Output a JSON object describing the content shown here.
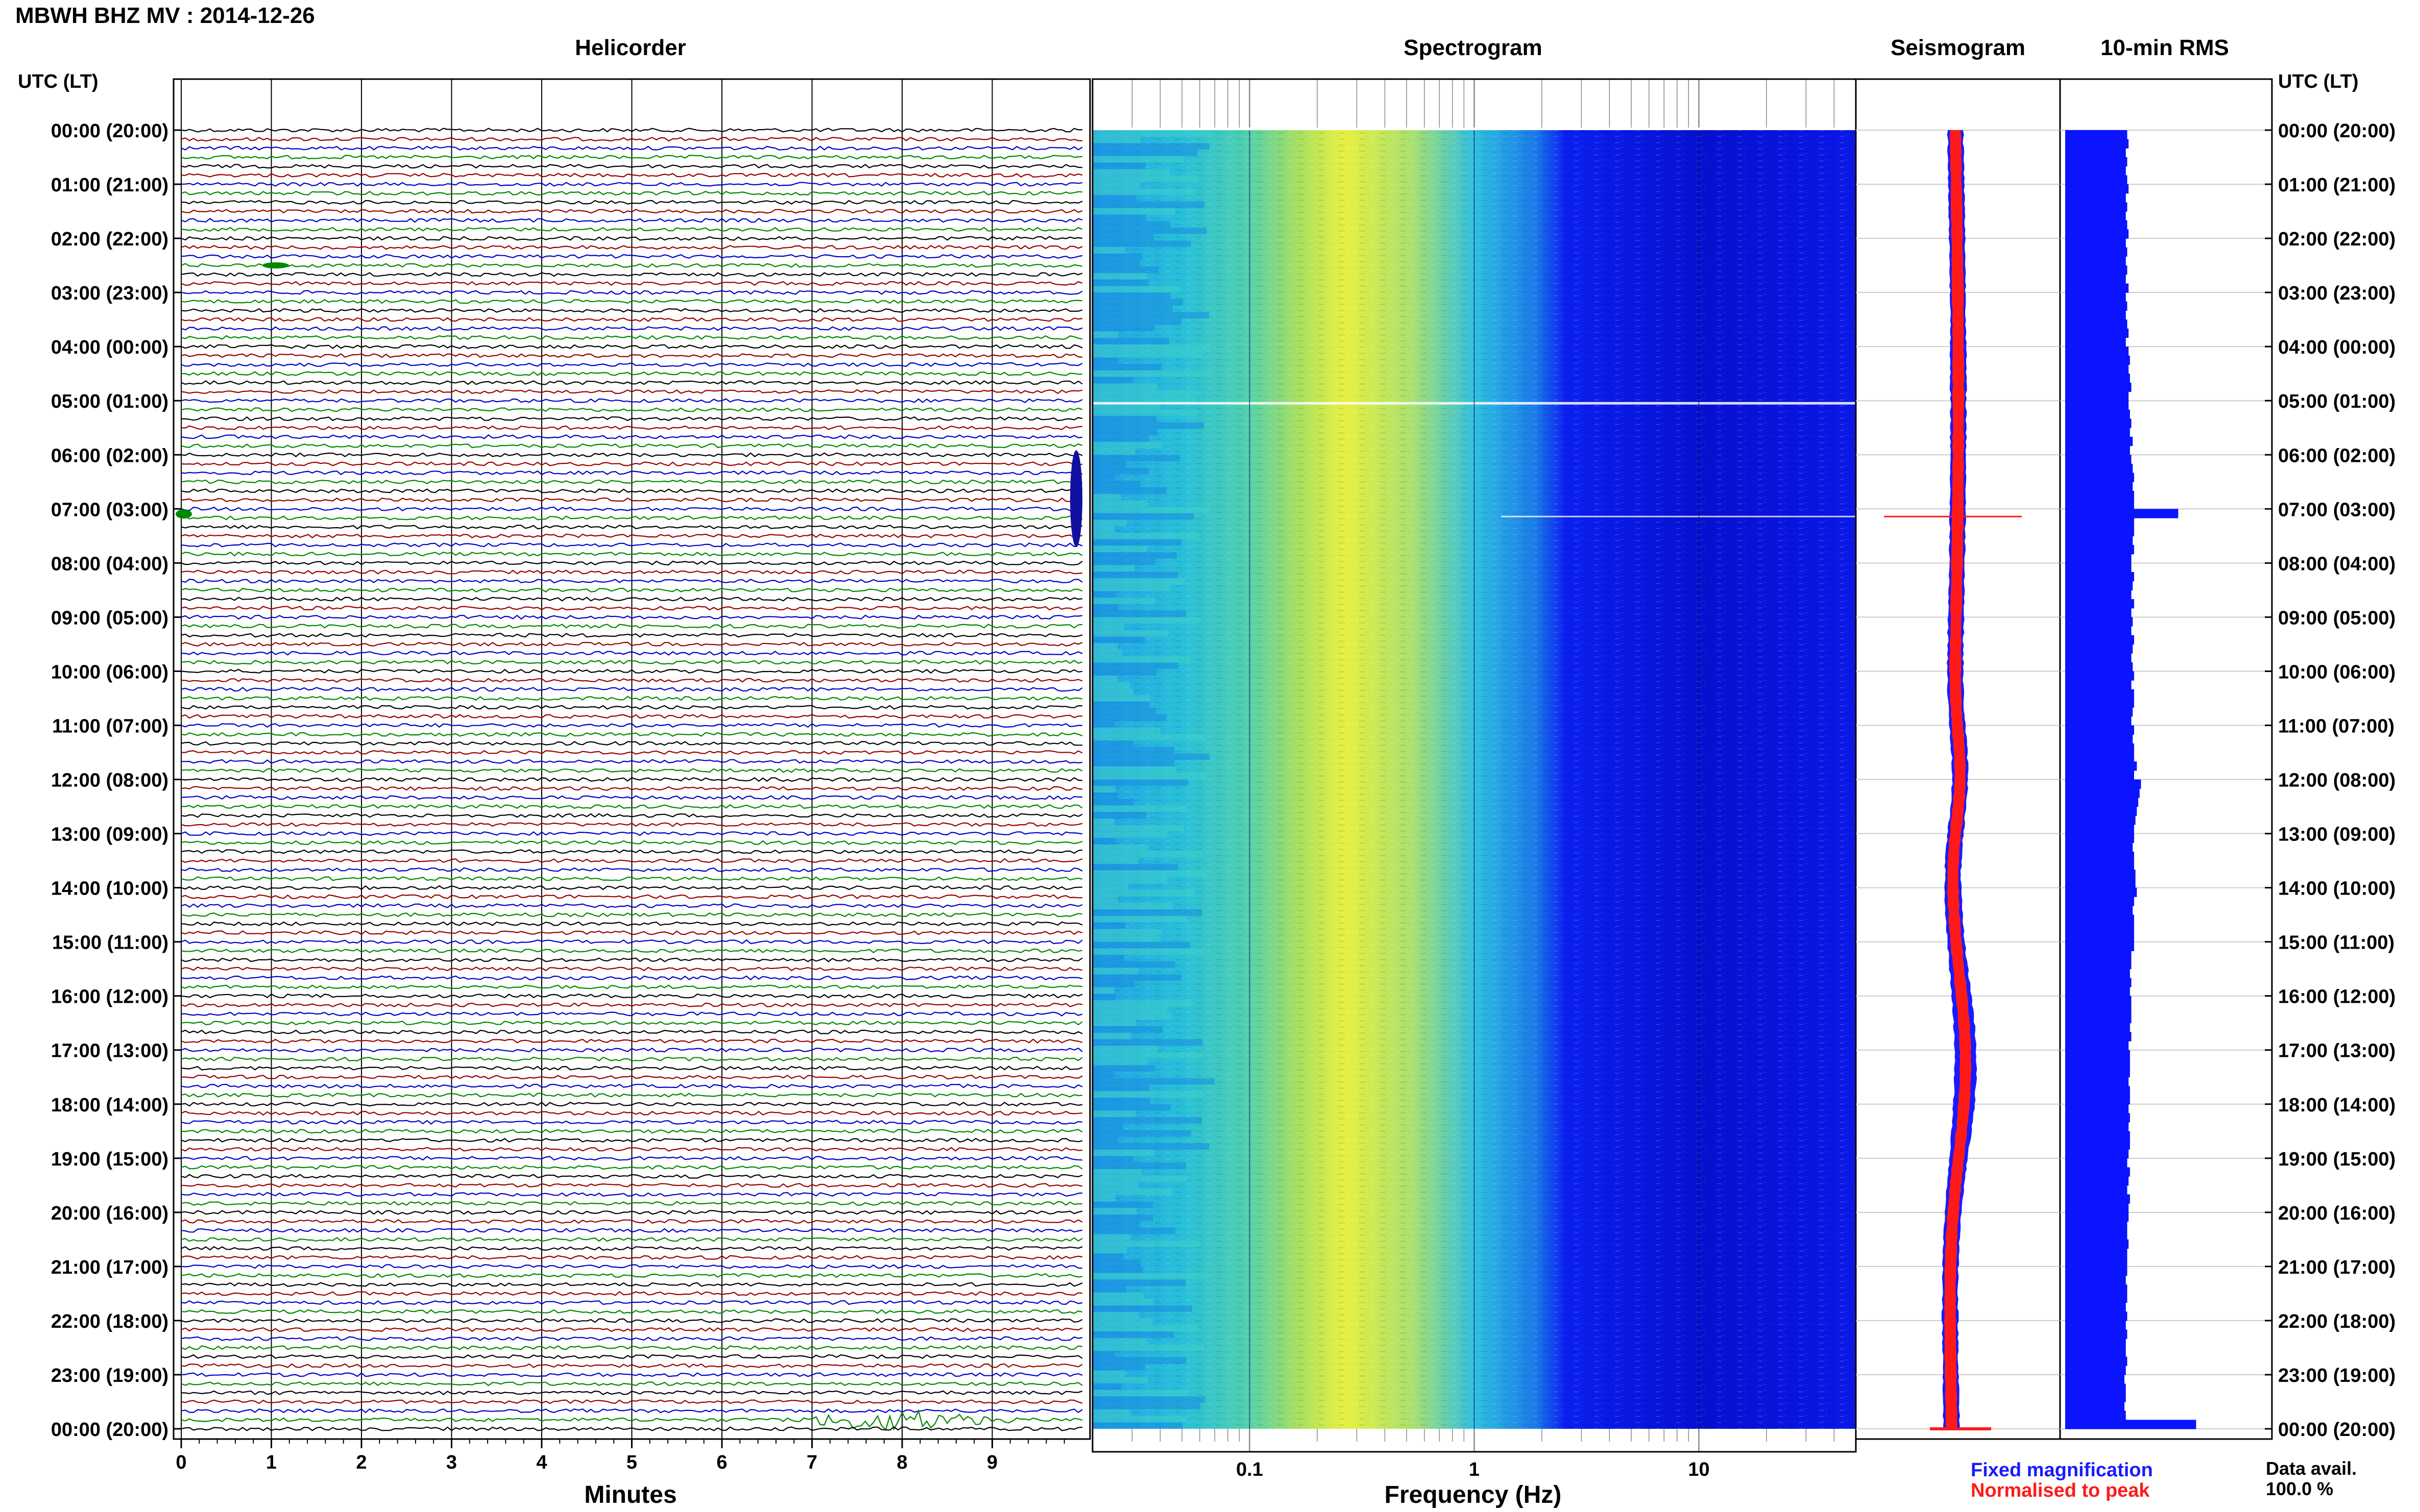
{
  "header": {
    "station_title": "MBWH BHZ MV : 2014-12-26"
  },
  "panels": {
    "helicorder": "Helicorder",
    "spectrogram": "Spectrogram",
    "seismogram": "Seismogram",
    "rms": "10-min RMS"
  },
  "axis": {
    "time_label_left": "UTC (LT)",
    "time_label_right": "UTC (LT)",
    "minutes_label": "Minutes",
    "frequency_label": "Frequency (Hz)"
  },
  "legend": {
    "fixed": "Fixed magnification",
    "normalised": "Normalised to peak",
    "fixed_color": "#1a1aff",
    "normalised_color": "#ff1a1a"
  },
  "data_avail": {
    "label": "Data avail.",
    "value": "100.0 %"
  },
  "colors": {
    "trace_cycle": [
      "#000000",
      "#990000",
      "#0000cc",
      "#008800"
    ],
    "rms_bar": "#0a14ff",
    "seis_fixed": "#1a1aff",
    "seis_norm": "#ff1a1a"
  },
  "chart_data": [
    {
      "type": "line",
      "name": "helicorder",
      "xlabel": "Minutes",
      "x_ticks": [
        "0",
        "1",
        "2",
        "3",
        "4",
        "5",
        "6",
        "7",
        "8",
        "9"
      ],
      "xlim": [
        0,
        10
      ],
      "time_labels": [
        "00:00 (20:00)",
        "01:00 (21:00)",
        "02:00 (22:00)",
        "03:00 (23:00)",
        "04:00 (00:00)",
        "05:00 (01:00)",
        "06:00 (02:00)",
        "07:00 (03:00)",
        "08:00 (04:00)",
        "09:00 (05:00)",
        "10:00 (06:00)",
        "11:00 (07:00)",
        "12:00 (08:00)",
        "13:00 (09:00)",
        "14:00 (10:00)",
        "15:00 (11:00)",
        "16:00 (12:00)",
        "17:00 (13:00)",
        "18:00 (14:00)",
        "19:00 (15:00)",
        "20:00 (16:00)",
        "21:00 (17:00)",
        "22:00 (18:00)",
        "23:00 (19:00)",
        "00:00 (20:00)"
      ],
      "rows": 144,
      "events": [
        {
          "hour": 7,
          "minute": 9.9,
          "note": "large event at end of row"
        },
        {
          "hour": 23.83,
          "minute": 7.8,
          "note": "moderate emergent signal"
        }
      ]
    },
    {
      "type": "heatmap",
      "name": "spectrogram",
      "xlabel": "Frequency (Hz)",
      "x_scale": "log",
      "x_ticks": [
        "0.1",
        "1",
        "10"
      ],
      "xlim": [
        0.02,
        50
      ]
    },
    {
      "type": "line",
      "name": "seismogram",
      "series_labels": [
        "Fixed magnification",
        "Normalised to peak"
      ]
    },
    {
      "type": "bar",
      "name": "rms",
      "orientation": "horizontal",
      "x_max": 1.0,
      "values": [
        0.45,
        0.46,
        0.44,
        0.45,
        0.44,
        0.45,
        0.46,
        0.44,
        0.45,
        0.44,
        0.45,
        0.46,
        0.44,
        0.45,
        0.44,
        0.45,
        0.44,
        0.46,
        0.44,
        0.45,
        0.44,
        0.45,
        0.46,
        0.44,
        0.46,
        0.47,
        0.46,
        0.47,
        0.48,
        0.46,
        0.46,
        0.47,
        0.48,
        0.47,
        0.49,
        0.47,
        0.48,
        0.49,
        0.5,
        0.49,
        0.5,
        0.5,
        0.82,
        0.5,
        0.5,
        0.49,
        0.5,
        0.48,
        0.48,
        0.5,
        0.49,
        0.48,
        0.5,
        0.48,
        0.49,
        0.48,
        0.5,
        0.49,
        0.48,
        0.49,
        0.5,
        0.48,
        0.5,
        0.5,
        0.49,
        0.48,
        0.5,
        0.49,
        0.5,
        0.5,
        0.52,
        0.5,
        0.55,
        0.54,
        0.53,
        0.52,
        0.51,
        0.5,
        0.5,
        0.49,
        0.5,
        0.5,
        0.51,
        0.51,
        0.52,
        0.5,
        0.49,
        0.5,
        0.5,
        0.5,
        0.5,
        0.48,
        0.48,
        0.47,
        0.48,
        0.47,
        0.48,
        0.48,
        0.48,
        0.47,
        0.48,
        0.46,
        0.47,
        0.47,
        0.47,
        0.46,
        0.47,
        0.47,
        0.46,
        0.47,
        0.46,
        0.47,
        0.47,
        0.46,
        0.45,
        0.47,
        0.46,
        0.45,
        0.47,
        0.46,
        0.46,
        0.45,
        0.45,
        0.46,
        0.45,
        0.45,
        0.45,
        0.44,
        0.45,
        0.45,
        0.44,
        0.45,
        0.44,
        0.45,
        0.44,
        0.44,
        0.45,
        0.44,
        0.43,
        0.44,
        0.44,
        0.43,
        0.44,
        0.95
      ]
    }
  ]
}
